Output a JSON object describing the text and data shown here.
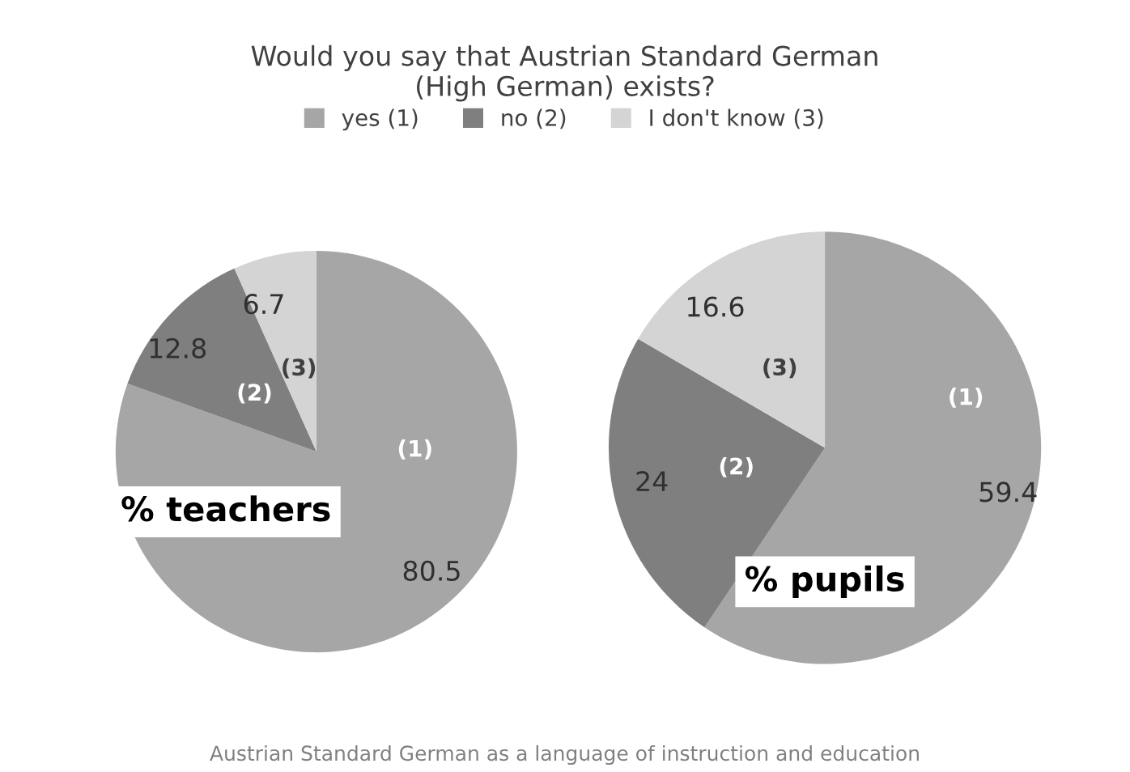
{
  "chart_data": [
    {
      "type": "pie",
      "title": "Would you say that Austrian Standard German\n(High German) exists?",
      "legend": "top",
      "categories": [
        "yes (1)",
        "no (2)",
        "I don't know (3)"
      ],
      "values": [
        80.5,
        12.8,
        6.7
      ],
      "colors": [
        "#a6a6a6",
        "#7f7f7f",
        "#d4d4d4"
      ],
      "data_labels": true,
      "annotations": [
        "(1)",
        "(2)",
        "(3)",
        "% teachers"
      ]
    },
    {
      "type": "pie",
      "values": [
        59.4,
        24,
        16.6
      ],
      "colors": [
        "#a6a6a6",
        "#7f7f7f",
        "#d4d4d4"
      ],
      "data_labels": true,
      "annotations": [
        "(1)",
        "(2)",
        "(3)",
        "% pupils",
        "Austrian Standard German as a language of instruction and education"
      ]
    }
  ]
}
